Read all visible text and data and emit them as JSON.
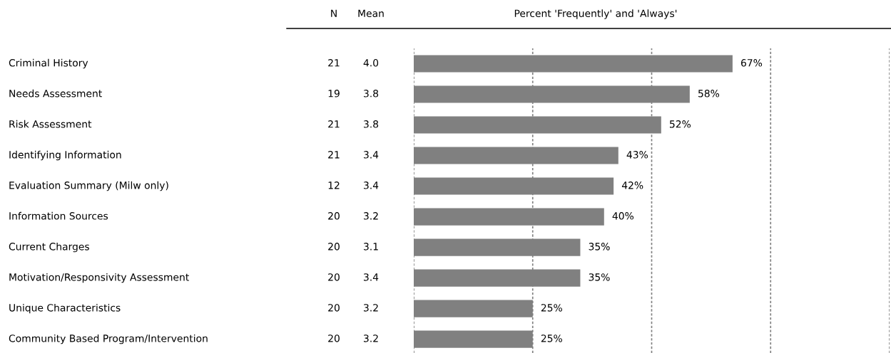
{
  "chart_data": {
    "type": "bar",
    "orientation": "horizontal",
    "title": "Percent 'Frequently' and 'Always'",
    "categories": [
      "Criminal History",
      "Needs Assessment",
      "Risk Assessment",
      "Identifying Information",
      "Evaluation Summary (Milw only)",
      "Information Sources",
      "Current Charges",
      "Motivation/Responsivity Assessment",
      "Unique Characteristics",
      "Community Based Program/Intervention"
    ],
    "values": [
      67,
      58,
      52,
      43,
      42,
      40,
      35,
      35,
      25,
      25
    ],
    "value_labels": [
      "67%",
      "58%",
      "52%",
      "43%",
      "42%",
      "40%",
      "35%",
      "35%",
      "25%",
      "25%"
    ],
    "color": "#808080",
    "xlim": [
      0,
      100
    ],
    "xticks": [
      {
        "value": 0,
        "label": null
      },
      {
        "value": 25,
        "label": null
      },
      {
        "value": 50,
        "label": null
      },
      {
        "value": 75,
        "label": null
      },
      {
        "value": 100,
        "label": null
      }
    ],
    "grid": "x",
    "tick_labels": "y",
    "annotations": [
      "N",
      "Mean",
      "21",
      "4.0",
      "19",
      "3.8",
      "21",
      "3.8",
      "21",
      "3.4",
      "12",
      "3.4",
      "20",
      "3.2",
      "20",
      "3.1",
      "20",
      "3.4",
      "20",
      "3.2",
      "20",
      "3.2"
    ]
  }
}
